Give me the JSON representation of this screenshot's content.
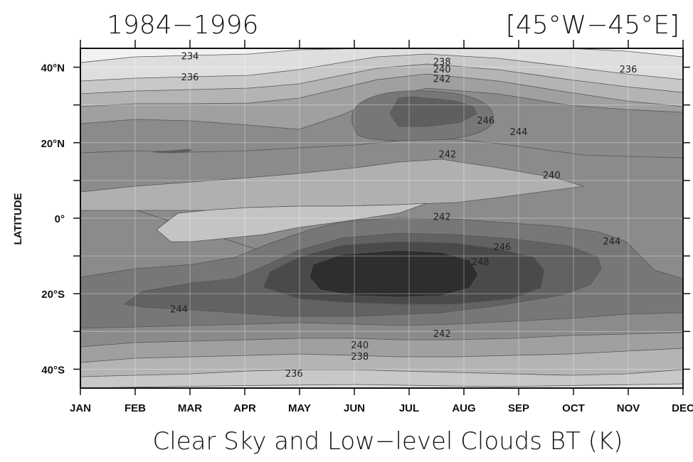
{
  "chart_data": {
    "type": "contour",
    "title_left": "1984−1996",
    "title_right": "[45°W−45°E]",
    "xlabel": "Clear Sky and Low−level Clouds BT (K)",
    "ylabel": "LATITUDE",
    "x_tick_labels": [
      "JAN",
      "FEB",
      "MAR",
      "APR",
      "MAY",
      "JUN",
      "JUL",
      "AUG",
      "SEP",
      "OCT",
      "NOV",
      "DEC"
    ],
    "y_tick_labels": [
      {
        "value": 40,
        "label": "40°N"
      },
      {
        "value": 20,
        "label": "20°N"
      },
      {
        "value": 0,
        "label": "0°"
      },
      {
        "value": -20,
        "label": "20°S"
      },
      {
        "value": -40,
        "label": "40°S"
      }
    ],
    "ylim": [
      -45,
      45
    ],
    "grid": true,
    "contour_levels": [
      234,
      236,
      238,
      240,
      242,
      244,
      246,
      248
    ],
    "shading": "darker = higher BT",
    "contour_labels": [
      {
        "text": "234",
        "month": 2.0,
        "lat": 43
      },
      {
        "text": "236",
        "month": 2.0,
        "lat": 37.5
      },
      {
        "text": "238",
        "month": 6.6,
        "lat": 41.5
      },
      {
        "text": "240",
        "month": 6.6,
        "lat": 39.5
      },
      {
        "text": "242",
        "month": 6.6,
        "lat": 37
      },
      {
        "text": "246",
        "month": 7.4,
        "lat": 26
      },
      {
        "text": "244",
        "month": 8.0,
        "lat": 23
      },
      {
        "text": "242",
        "month": 6.7,
        "lat": 17
      },
      {
        "text": "240",
        "month": 8.6,
        "lat": 11.5
      },
      {
        "text": "236",
        "month": 10.0,
        "lat": 39.5
      },
      {
        "text": "242",
        "month": 6.6,
        "lat": 0.5
      },
      {
        "text": "246",
        "month": 7.7,
        "lat": -7.5
      },
      {
        "text": "248",
        "month": 7.3,
        "lat": -11.5
      },
      {
        "text": "244",
        "month": 9.7,
        "lat": -6
      },
      {
        "text": "244",
        "month": 1.8,
        "lat": -24
      },
      {
        "text": "242",
        "month": 6.6,
        "lat": -30.5
      },
      {
        "text": "240",
        "month": 5.1,
        "lat": -33.5
      },
      {
        "text": "238",
        "month": 5.1,
        "lat": -36.5
      },
      {
        "text": "236",
        "month": 3.9,
        "lat": -41
      }
    ]
  }
}
